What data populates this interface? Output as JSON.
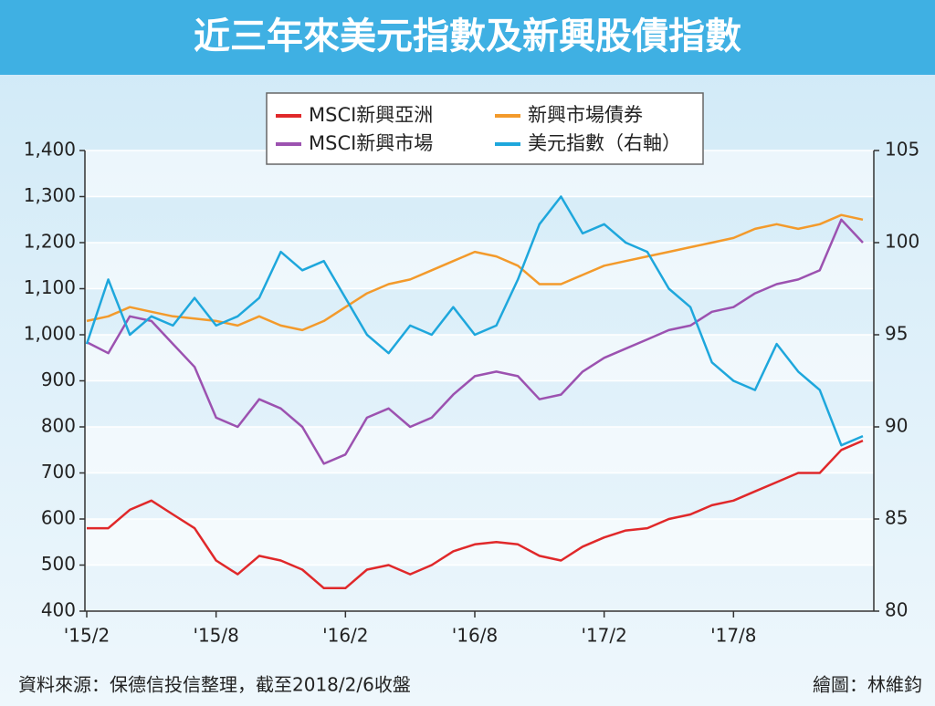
{
  "chart_data": {
    "type": "line",
    "title": "近三年來美元指數及新興股債指數",
    "source": "資料來源：保德信投信整理，截至2018/2/6收盤",
    "credit": "繪圖：林維鈞",
    "categories": [
      "'15/2",
      null,
      null,
      null,
      null,
      null,
      "'15/8",
      null,
      null,
      null,
      null,
      null,
      "'16/2",
      null,
      null,
      null,
      null,
      null,
      "'16/8",
      null,
      null,
      null,
      null,
      null,
      "'17/2",
      null,
      null,
      null,
      null,
      null,
      "'17/8",
      null,
      null,
      null,
      null,
      null,
      null
    ],
    "series": [
      {
        "name": "MSCI新興亞洲",
        "color": "#e0282a",
        "values": [
          580,
          580,
          620,
          640,
          610,
          580,
          510,
          480,
          520,
          510,
          490,
          450,
          450,
          490,
          500,
          480,
          500,
          530,
          545,
          550,
          545,
          520,
          510,
          540,
          560,
          575,
          580,
          600,
          610,
          630,
          640,
          660,
          680,
          700,
          700,
          750,
          770
        ]
      },
      {
        "name": "MSCI新興市場",
        "color": "#9c52b0",
        "values": [
          984,
          960,
          1040,
          1030,
          980,
          930,
          820,
          800,
          860,
          840,
          800,
          720,
          740,
          820,
          840,
          800,
          820,
          870,
          910,
          920,
          910,
          860,
          870,
          920,
          950,
          970,
          990,
          1010,
          1020,
          1050,
          1060,
          1090,
          1110,
          1120,
          1140,
          1250,
          1200
        ]
      },
      {
        "name": "新興市場債券",
        "color": "#f39a2b",
        "values": [
          1030,
          1040,
          1060,
          1050,
          1040,
          1035,
          1030,
          1020,
          1040,
          1020,
          1010,
          1030,
          1060,
          1090,
          1110,
          1120,
          1140,
          1160,
          1180,
          1170,
          1150,
          1110,
          1110,
          1130,
          1150,
          1160,
          1170,
          1180,
          1190,
          1200,
          1210,
          1230,
          1240,
          1230,
          1240,
          1260,
          1250
        ]
      },
      {
        "name": "美元指數（右軸）",
        "color": "#1ea7dc",
        "axis": "y2",
        "values": [
          94.5,
          98,
          95,
          96,
          95.5,
          97,
          95.5,
          96,
          97,
          99.5,
          98.5,
          99,
          97,
          95,
          94,
          95.5,
          95,
          96.5,
          95,
          95.5,
          98,
          101,
          102.5,
          100.5,
          101,
          100,
          99.5,
          97.5,
          96.5,
          93.5,
          92.5,
          92,
          94.5,
          93,
          92,
          89,
          89.5
        ]
      }
    ],
    "ylim": [
      400,
      1400
    ],
    "yticks": [
      400,
      500,
      600,
      700,
      800,
      900,
      {
        "value": 1000,
        "label": "1,000"
      },
      {
        "value": 1100,
        "label": "1,100"
      },
      {
        "value": 1200,
        "label": "1,200"
      },
      {
        "value": 1300,
        "label": "1,300"
      },
      {
        "value": 1400,
        "label": "1,400"
      }
    ],
    "y2lim": [
      80,
      105
    ],
    "y2ticks": [
      80,
      85,
      90,
      95,
      100,
      105
    ],
    "grid": true
  }
}
